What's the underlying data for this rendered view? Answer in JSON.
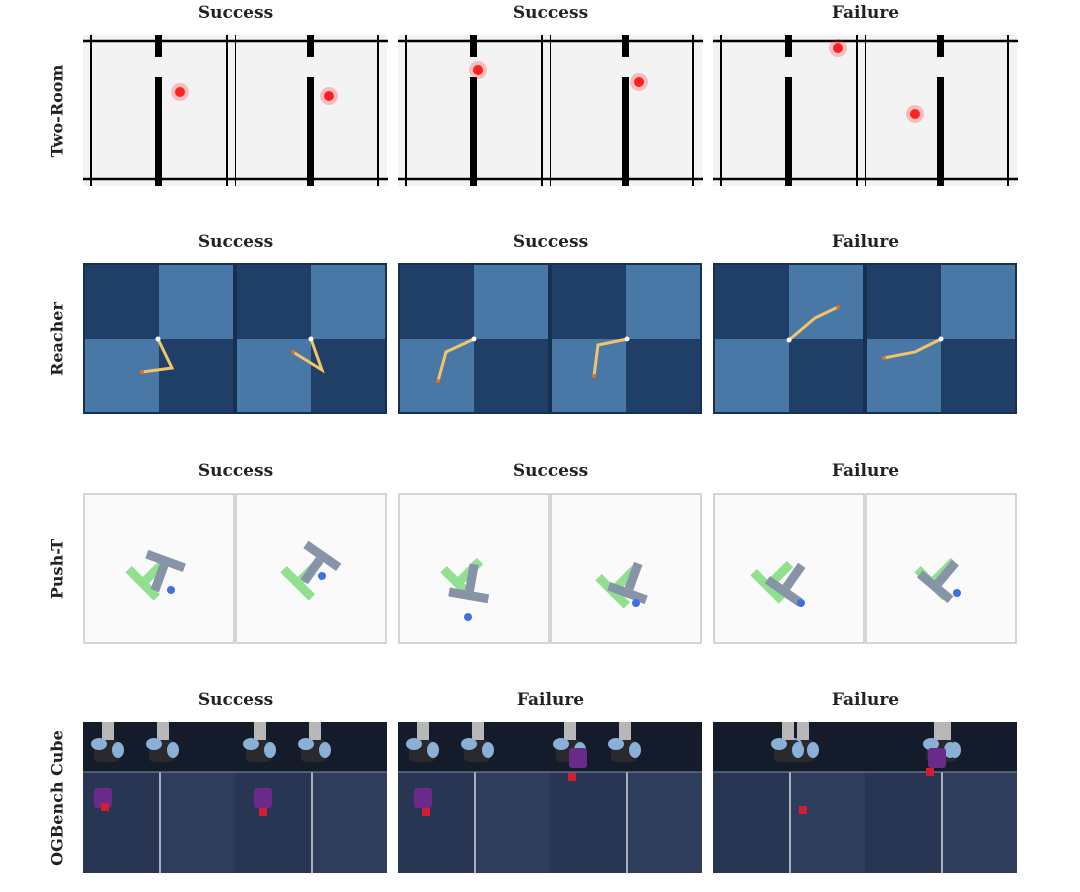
{
  "rows": [
    {
      "label": "Two-Room",
      "env": "two-room",
      "titles": [
        "Success",
        "Success",
        "Failure"
      ]
    },
    {
      "label": "Reacher",
      "env": "reacher",
      "titles": [
        "Success",
        "Success",
        "Failure"
      ]
    },
    {
      "label": "Push-T",
      "env": "push-t",
      "titles": [
        "Success",
        "Success",
        "Failure"
      ]
    },
    {
      "label": "OGBench Cube",
      "env": "cube",
      "titles": [
        "Success",
        "Failure",
        "Failure"
      ]
    }
  ],
  "colors": {
    "agent_dot": "#ff2020",
    "reacher_dark": "#1f3f66",
    "reacher_light": "#4a78a6",
    "reacher_arm": "#f2c46a",
    "pusht_target": "#90e090",
    "pusht_block": "#8793a6",
    "pusht_agent": "#3f6fe0",
    "cube_gripper": "#6a2a8a",
    "cube_block": "#d02030"
  }
}
